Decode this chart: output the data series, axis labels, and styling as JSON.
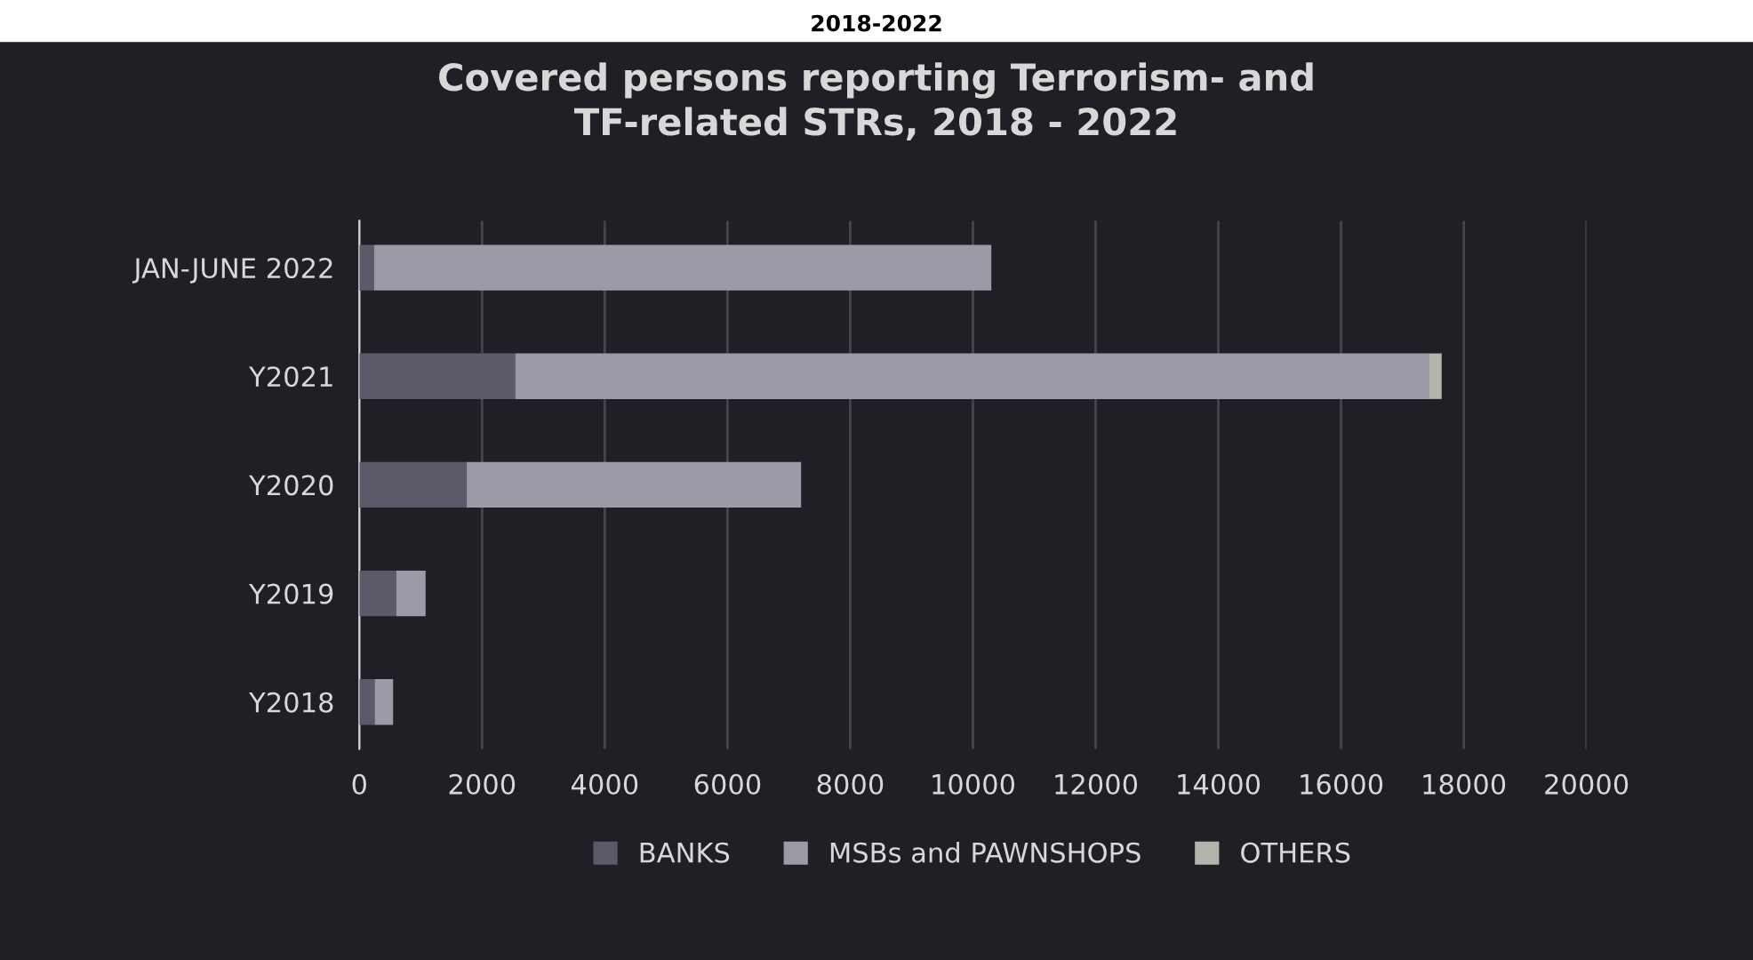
{
  "chart_data": {
    "type": "bar",
    "orientation": "horizontal",
    "stacked": true,
    "title": "Covered persons reporting Terrorism- and\nTF-related STRs, 2018 - 2022",
    "annotations": [
      "2018-2022"
    ],
    "categories": [
      "JAN-JUNE 2022",
      "Y2021",
      "Y2020",
      "Y2019",
      "Y2018"
    ],
    "series": [
      {
        "name": "BANKS",
        "color": "#5c5a68",
        "values": [
          240,
          2540,
          1750,
          600,
          250
        ]
      },
      {
        "name": "MSBs and PAWNSHOPS",
        "color": "#9c9aa6",
        "values": [
          10060,
          14900,
          5450,
          480,
          300
        ]
      },
      {
        "name": "OTHERS",
        "color": "#b4b4ac",
        "values": [
          0,
          200,
          0,
          0,
          0
        ]
      }
    ],
    "xlim": [
      0,
      20000
    ],
    "xticks": [
      0,
      2000,
      4000,
      6000,
      8000,
      10000,
      12000,
      14000,
      16000,
      18000,
      20000
    ],
    "grid": "x",
    "legend": "bottom"
  }
}
